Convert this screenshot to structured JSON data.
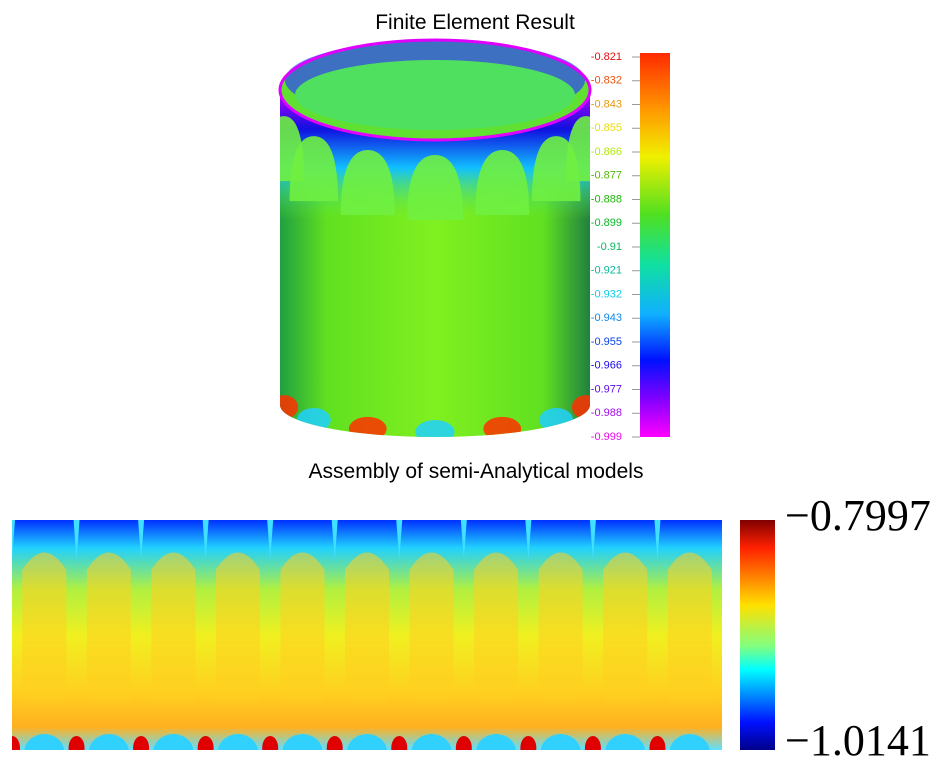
{
  "top_panel": {
    "title": "Finite Element Result",
    "colorbar": {
      "labels": [
        "-0.821",
        "-0.832",
        "-0.843",
        "-0.855",
        "-0.866",
        "-0.877",
        "-0.888",
        "-0.899",
        "-0.91",
        "-0.921",
        "-0.932",
        "-0.943",
        "-0.955",
        "-0.966",
        "-0.977",
        "-0.988",
        "-0.999"
      ]
    }
  },
  "bottom_panel": {
    "title": "Assembly of semi-Analytical models",
    "colorbar": {
      "max_label": "−0.7997",
      "min_label": "−1.0141"
    }
  }
}
